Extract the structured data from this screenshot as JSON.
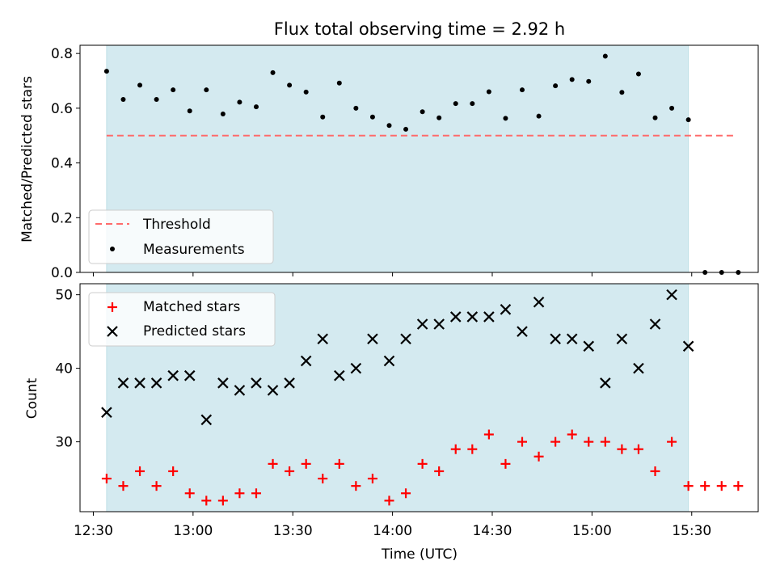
{
  "chart_data": [
    {
      "type": "scatter",
      "title": "Flux total observing time = 2.92 h",
      "ylabel": "Matched/Predicted stars",
      "xlabel": "",
      "ylim": [
        0,
        0.83
      ],
      "yticks": [
        "0.0",
        "0.2",
        "0.4",
        "0.6",
        "0.8"
      ],
      "ytick_values": [
        0,
        0.2,
        0.4,
        0.6,
        0.8
      ],
      "observing_window": [
        "12:34",
        "15:29"
      ],
      "threshold": {
        "name": "Threshold",
        "value": 0.5,
        "color": "#ff6b6b",
        "x": [
          "12:34",
          "15:43"
        ]
      },
      "series": [
        {
          "name": "Measurements",
          "color": "#000000",
          "x": [
            "12:34",
            "12:39",
            "12:44",
            "12:49",
            "12:54",
            "12:59",
            "13:04",
            "13:09",
            "13:14",
            "13:19",
            "13:24",
            "13:29",
            "13:34",
            "13:39",
            "13:44",
            "13:49",
            "13:54",
            "13:59",
            "14:04",
            "14:09",
            "14:14",
            "14:19",
            "14:24",
            "14:29",
            "14:34",
            "14:39",
            "14:44",
            "14:49",
            "14:54",
            "14:59",
            "15:04",
            "15:09",
            "15:14",
            "15:19",
            "15:24",
            "15:29",
            "15:34",
            "15:39",
            "15:44"
          ],
          "values": [
            0.735,
            0.632,
            0.684,
            0.632,
            0.667,
            0.59,
            0.667,
            0.579,
            0.622,
            0.605,
            0.73,
            0.684,
            0.659,
            0.568,
            0.692,
            0.6,
            0.568,
            0.537,
            0.523,
            0.587,
            0.565,
            0.617,
            0.617,
            0.66,
            0.563,
            0.667,
            0.571,
            0.682,
            0.705,
            0.698,
            0.79,
            0.658,
            0.725,
            0.565,
            0.6,
            0.558,
            0,
            0,
            0
          ]
        }
      ],
      "legend": "lower-left"
    },
    {
      "type": "scatter",
      "ylabel": "Count",
      "xlabel": "Time (UTC)",
      "ylim": [
        20.5,
        51.5
      ],
      "yticks": [
        "30",
        "40",
        "50"
      ],
      "ytick_values": [
        30,
        40,
        50
      ],
      "xticks": [
        "12:30",
        "13:00",
        "13:30",
        "14:00",
        "14:30",
        "15:00",
        "15:30"
      ],
      "xlim": [
        "12:26",
        "15:50"
      ],
      "observing_window": [
        "12:34",
        "15:29"
      ],
      "series": [
        {
          "name": "Matched stars",
          "color": "#ff0000",
          "marker": "plus",
          "x": [
            "12:34",
            "12:39",
            "12:44",
            "12:49",
            "12:54",
            "12:59",
            "13:04",
            "13:09",
            "13:14",
            "13:19",
            "13:24",
            "13:29",
            "13:34",
            "13:39",
            "13:44",
            "13:49",
            "13:54",
            "13:59",
            "14:04",
            "14:09",
            "14:14",
            "14:19",
            "14:24",
            "14:29",
            "14:34",
            "14:39",
            "14:44",
            "14:49",
            "14:54",
            "14:59",
            "15:04",
            "15:09",
            "15:14",
            "15:19",
            "15:24",
            "15:29",
            "15:34",
            "15:39",
            "15:44"
          ],
          "values": [
            25,
            24,
            26,
            24,
            26,
            23,
            22,
            22,
            23,
            23,
            27,
            26,
            27,
            25,
            27,
            24,
            25,
            22,
            23,
            27,
            26,
            29,
            29,
            31,
            27,
            30,
            28,
            30,
            31,
            30,
            30,
            29,
            29,
            26,
            30,
            24,
            24,
            24,
            24
          ]
        },
        {
          "name": "Predicted stars",
          "color": "#000000",
          "marker": "x",
          "x": [
            "12:34",
            "12:39",
            "12:44",
            "12:49",
            "12:54",
            "12:59",
            "13:04",
            "13:09",
            "13:14",
            "13:19",
            "13:24",
            "13:29",
            "13:34",
            "13:39",
            "13:44",
            "13:49",
            "13:54",
            "13:59",
            "14:04",
            "14:09",
            "14:14",
            "14:19",
            "14:24",
            "14:29",
            "14:34",
            "14:39",
            "14:44",
            "14:49",
            "14:54",
            "14:59",
            "15:04",
            "15:09",
            "15:14",
            "15:19",
            "15:24",
            "15:29"
          ],
          "values": [
            34,
            38,
            38,
            38,
            39,
            39,
            33,
            38,
            37,
            38,
            37,
            38,
            41,
            44,
            39,
            40,
            44,
            41,
            44,
            46,
            46,
            47,
            47,
            47,
            48,
            45,
            49,
            44,
            44,
            43,
            38,
            44,
            40,
            46,
            50,
            43
          ]
        }
      ],
      "legend": "upper-left"
    }
  ],
  "colors": {
    "window_fill": "#d4eaf0",
    "window_edge": "#bfe0e6"
  }
}
